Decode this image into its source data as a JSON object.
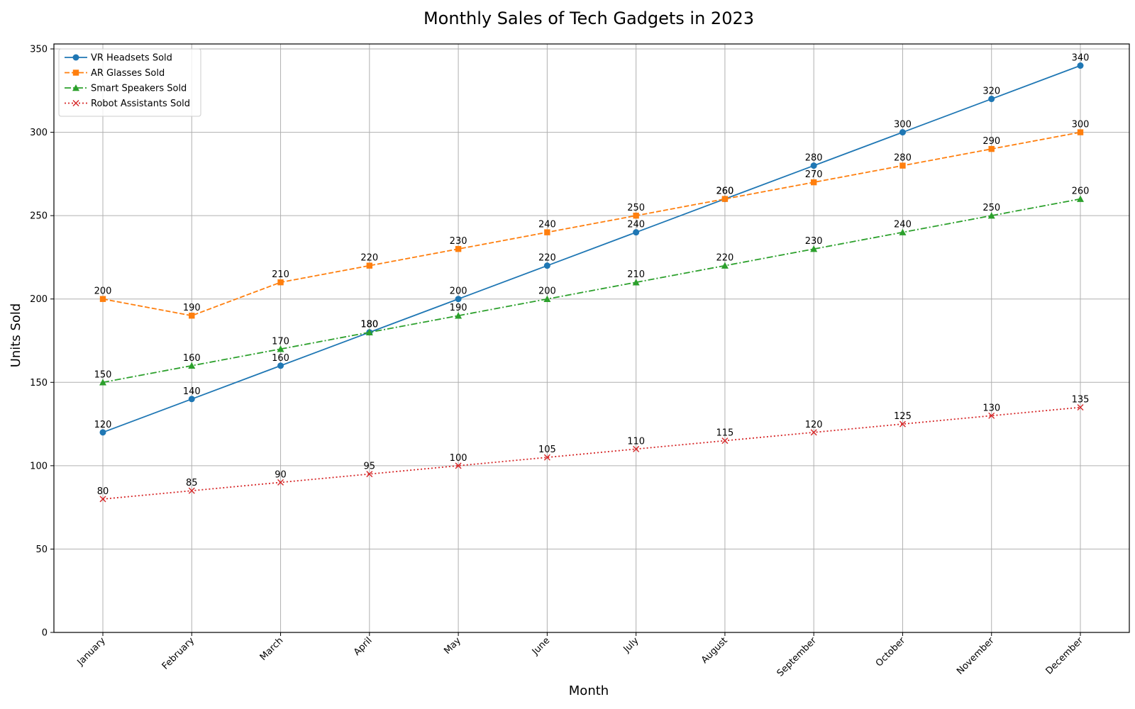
{
  "chart_data": {
    "type": "line",
    "title": "Monthly Sales of Tech Gadgets in 2023",
    "xlabel": "Month",
    "ylabel": "Units Sold",
    "categories": [
      "January",
      "February",
      "March",
      "April",
      "May",
      "June",
      "July",
      "August",
      "September",
      "October",
      "November",
      "December"
    ],
    "ylim": [
      0,
      350
    ],
    "yticks": [
      0,
      50,
      100,
      150,
      200,
      250,
      300,
      350
    ],
    "grid": true,
    "legend_position": "upper-left",
    "series": [
      {
        "name": "VR Headsets Sold",
        "values": [
          120,
          140,
          160,
          180,
          200,
          220,
          240,
          260,
          280,
          300,
          320,
          340
        ],
        "color": "#1f77b4",
        "line_style": "solid",
        "marker": "circle"
      },
      {
        "name": "AR Glasses Sold",
        "values": [
          200,
          190,
          210,
          220,
          230,
          240,
          250,
          260,
          270,
          280,
          290,
          300
        ],
        "color": "#ff7f0e",
        "line_style": "dashed",
        "marker": "square"
      },
      {
        "name": "Smart Speakers Sold",
        "values": [
          150,
          160,
          170,
          180,
          190,
          200,
          210,
          220,
          230,
          240,
          250,
          260
        ],
        "color": "#2ca02c",
        "line_style": "dashdot",
        "marker": "triangle"
      },
      {
        "name": "Robot Assistants Sold",
        "values": [
          80,
          85,
          90,
          95,
          100,
          105,
          110,
          115,
          120,
          125,
          130,
          135
        ],
        "color": "#d62728",
        "line_style": "dotted",
        "marker": "x"
      }
    ]
  }
}
